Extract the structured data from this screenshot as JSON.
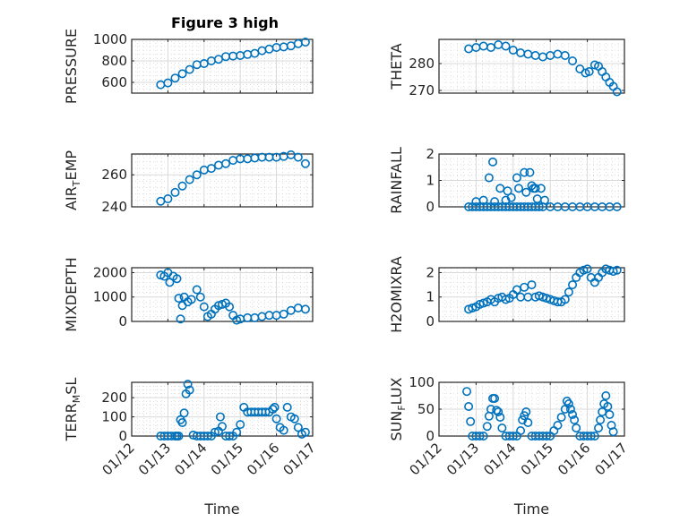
{
  "chart_data": {
    "type": "scatter",
    "title": "Figure 3 high",
    "marker": "open-circle",
    "color": "#0072BD",
    "grid": "major+minor",
    "xaxis": {
      "label": "Time",
      "range": [
        "01/12",
        "01/17"
      ],
      "ticks": [
        "01/12",
        "01/13",
        "01/14",
        "01/15",
        "01/16",
        "01/17"
      ],
      "tick_rotation_deg": 45,
      "shown_on": [
        "TERR_MSL",
        "SUN_FLUX"
      ]
    },
    "panels": [
      {
        "name": "PRESSURE",
        "ylabel_main": "PRESSURE",
        "ylabel_sub": "",
        "ylabel_tail": "",
        "ylim": [
          500,
          1000
        ],
        "yticks": [
          600,
          800,
          1000
        ],
        "x": [
          0.8,
          1.0,
          1.2,
          1.4,
          1.6,
          1.8,
          2.0,
          2.2,
          2.4,
          2.6,
          2.8,
          3.0,
          3.2,
          3.4,
          3.6,
          3.8,
          4.0,
          4.2,
          4.4,
          4.6,
          4.8
        ],
        "y": [
          578,
          595,
          640,
          680,
          720,
          765,
          775,
          800,
          815,
          840,
          845,
          850,
          860,
          870,
          895,
          910,
          925,
          930,
          940,
          960,
          975
        ]
      },
      {
        "name": "THETA",
        "ylabel_main": "THETA",
        "ylabel_sub": "",
        "ylabel_tail": "",
        "ylim": [
          269,
          289
        ],
        "yticks": [
          270,
          280
        ],
        "x": [
          0.8,
          1.0,
          1.2,
          1.4,
          1.6,
          1.8,
          2.0,
          2.2,
          2.4,
          2.6,
          2.8,
          3.0,
          3.2,
          3.4,
          3.6,
          3.8,
          3.95,
          4.05,
          4.2,
          4.3,
          4.4,
          4.5,
          4.6,
          4.7,
          4.8
        ],
        "y": [
          285.5,
          286,
          286.5,
          286,
          287,
          286.5,
          285,
          284,
          283.5,
          283,
          282.5,
          283,
          283.5,
          283,
          281,
          278,
          276.5,
          277,
          279.5,
          279,
          277,
          275,
          273,
          271.5,
          269.5
        ]
      },
      {
        "name": "AIR_TEMP",
        "ylabel_main": "AIR",
        "ylabel_sub": "T",
        "ylabel_tail": "EMP",
        "ylim": [
          240,
          273
        ],
        "yticks": [
          240,
          260
        ],
        "x": [
          0.8,
          1.0,
          1.2,
          1.4,
          1.6,
          1.8,
          2.0,
          2.2,
          2.4,
          2.6,
          2.8,
          3.0,
          3.2,
          3.4,
          3.6,
          3.8,
          4.0,
          4.2,
          4.4,
          4.6,
          4.8
        ],
        "y": [
          243.5,
          245,
          249,
          253,
          257,
          260,
          263,
          264,
          266,
          267,
          269,
          270,
          270,
          270.5,
          271,
          271,
          271,
          271.5,
          272.5,
          271,
          267
        ]
      },
      {
        "name": "RAINFALL",
        "ylabel_main": "RAINFALL",
        "ylabel_sub": "",
        "ylabel_tail": "",
        "ylim": [
          0,
          2
        ],
        "yticks": [
          0,
          1,
          2
        ],
        "x": [
          0.8,
          0.9,
          1.0,
          1.1,
          1.2,
          1.3,
          1.4,
          1.5,
          1.6,
          1.7,
          1.8,
          1.9,
          2.0,
          2.1,
          2.2,
          2.3,
          2.4,
          2.5,
          2.6,
          2.7,
          2.8,
          3.0,
          3.2,
          3.4,
          3.6,
          3.8,
          4.0,
          4.2,
          4.4,
          4.6,
          4.8,
          1.0,
          1.2,
          1.35,
          1.45,
          1.5,
          1.65,
          1.8,
          1.85,
          1.95,
          2.1,
          2.15,
          2.3,
          2.35,
          2.45,
          2.5,
          2.55,
          2.6,
          2.65,
          2.75,
          2.85
        ],
        "y": [
          0,
          0,
          0,
          0,
          0,
          0,
          0,
          0,
          0,
          0,
          0,
          0,
          0,
          0,
          0,
          0,
          0,
          0,
          0,
          0,
          0,
          0,
          0,
          0,
          0,
          0,
          0,
          0,
          0,
          0,
          0,
          0.2,
          0.25,
          1.1,
          1.7,
          0.2,
          0.7,
          0.25,
          0.6,
          0.35,
          1.1,
          0.7,
          1.3,
          0.55,
          1.3,
          0.8,
          0.7,
          0.7,
          0.3,
          0.7,
          0.25
        ]
      },
      {
        "name": "MIXDEPTH",
        "ylabel_main": "MIXDEPTH",
        "ylabel_sub": "",
        "ylabel_tail": "",
        "ylim": [
          0,
          2200
        ],
        "yticks": [
          0,
          1000,
          2000
        ],
        "x": [
          0.8,
          0.9,
          1.0,
          1.05,
          1.15,
          1.25,
          1.3,
          1.35,
          1.4,
          1.45,
          1.55,
          1.65,
          1.8,
          1.9,
          2.0,
          2.1,
          2.2,
          2.3,
          2.4,
          2.5,
          2.6,
          2.7,
          2.8,
          2.9,
          3.0,
          3.2,
          3.4,
          3.6,
          3.8,
          4.0,
          4.2,
          4.4,
          4.6,
          4.8
        ],
        "y": [
          1900,
          1850,
          2000,
          1600,
          1850,
          1750,
          950,
          100,
          650,
          1000,
          800,
          900,
          1300,
          1000,
          600,
          200,
          300,
          500,
          650,
          700,
          750,
          600,
          250,
          50,
          100,
          150,
          150,
          200,
          250,
          250,
          300,
          450,
          550,
          500
        ]
      },
      {
        "name": "H2OMIXRA",
        "ylabel_main": "H2OMIXRA",
        "ylabel_sub": "",
        "ylabel_tail": "",
        "ylim": [
          0,
          2.2
        ],
        "yticks": [
          0,
          1,
          2
        ],
        "x": [
          0.8,
          0.9,
          1.0,
          1.1,
          1.2,
          1.3,
          1.4,
          1.5,
          1.6,
          1.7,
          1.8,
          1.9,
          2.0,
          2.1,
          2.2,
          2.3,
          2.4,
          2.5,
          2.6,
          2.7,
          2.8,
          2.9,
          3.0,
          3.1,
          3.2,
          3.3,
          3.4,
          3.5,
          3.6,
          3.7,
          3.8,
          3.9,
          4.0,
          4.1,
          4.2,
          4.3,
          4.4,
          4.5,
          4.6,
          4.7,
          4.8
        ],
        "y": [
          0.5,
          0.55,
          0.6,
          0.7,
          0.75,
          0.8,
          0.9,
          0.8,
          0.95,
          1.0,
          0.9,
          0.95,
          1.1,
          1.3,
          1.0,
          1.4,
          1.0,
          1.5,
          1.0,
          1.05,
          1.0,
          0.95,
          0.9,
          0.85,
          0.8,
          0.8,
          0.9,
          1.2,
          1.5,
          1.8,
          2.0,
          2.1,
          2.15,
          1.8,
          1.6,
          1.8,
          2.0,
          2.15,
          2.1,
          2.05,
          2.1
        ]
      },
      {
        "name": "TERR_MSL",
        "ylabel_main": "TERR",
        "ylabel_sub": "M",
        "ylabel_tail": "SL",
        "ylim": [
          0,
          280
        ],
        "yticks": [
          0,
          100,
          200
        ],
        "x": [
          0.8,
          0.9,
          1.0,
          1.1,
          1.2,
          1.25,
          1.3,
          1.35,
          1.4,
          1.45,
          1.5,
          1.55,
          1.6,
          1.7,
          1.8,
          1.9,
          2.0,
          2.1,
          2.2,
          2.3,
          2.4,
          2.45,
          2.5,
          2.6,
          2.7,
          2.8,
          2.9,
          3.0,
          3.1,
          3.2,
          3.3,
          3.4,
          3.5,
          3.6,
          3.7,
          3.8,
          3.9,
          3.95,
          4.0,
          4.1,
          4.2,
          4.3,
          4.4,
          4.5,
          4.6,
          4.7,
          4.8
        ],
        "y": [
          0,
          0,
          0,
          0,
          0,
          0,
          0,
          85,
          70,
          120,
          220,
          270,
          240,
          5,
          0,
          0,
          0,
          0,
          0,
          20,
          25,
          100,
          50,
          0,
          0,
          0,
          20,
          60,
          150,
          125,
          125,
          125,
          125,
          125,
          125,
          125,
          140,
          150,
          90,
          45,
          30,
          150,
          100,
          90,
          45,
          10,
          20
        ]
      },
      {
        "name": "SUN_FLUX",
        "ylabel_main": "SUN",
        "ylabel_sub": "F",
        "ylabel_tail": "LUX",
        "ylim": [
          0,
          100
        ],
        "yticks": [
          0,
          50,
          100
        ],
        "x": [
          0.75,
          0.8,
          0.85,
          0.9,
          1.0,
          1.1,
          1.2,
          1.3,
          1.35,
          1.4,
          1.45,
          1.5,
          1.55,
          1.6,
          1.65,
          1.7,
          1.8,
          1.9,
          2.0,
          2.1,
          2.2,
          2.25,
          2.3,
          2.35,
          2.4,
          2.5,
          2.6,
          2.7,
          2.8,
          2.9,
          3.0,
          3.1,
          3.2,
          3.3,
          3.4,
          3.45,
          3.5,
          3.55,
          3.6,
          3.65,
          3.7,
          3.8,
          3.9,
          4.0,
          4.1,
          4.2,
          4.3,
          4.35,
          4.4,
          4.45,
          4.5,
          4.55,
          4.6,
          4.65,
          4.7
        ],
        "y": [
          83,
          55,
          27,
          0,
          0,
          0,
          0,
          18,
          37,
          50,
          70,
          70,
          48,
          45,
          35,
          15,
          0,
          0,
          0,
          0,
          10,
          30,
          38,
          45,
          25,
          0,
          0,
          0,
          0,
          0,
          0,
          10,
          20,
          35,
          50,
          65,
          60,
          50,
          40,
          30,
          15,
          0,
          0,
          0,
          0,
          0,
          15,
          30,
          45,
          60,
          75,
          55,
          40,
          20,
          8
        ]
      }
    ]
  }
}
